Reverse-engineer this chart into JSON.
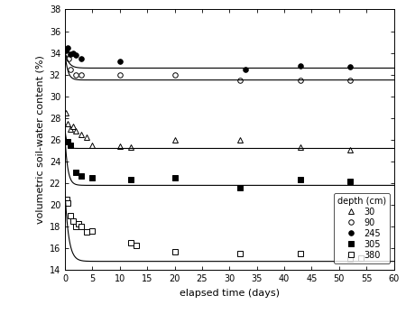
{
  "title": "",
  "xlabel": "elapsed time (days)",
  "ylabel": "volumetric soil-water content (%)",
  "xlim": [
    0,
    60
  ],
  "ylim": [
    14,
    38
  ],
  "yticks": [
    14,
    16,
    18,
    20,
    22,
    24,
    26,
    28,
    30,
    32,
    34,
    36,
    38
  ],
  "xticks": [
    0,
    5,
    10,
    15,
    20,
    25,
    30,
    35,
    40,
    45,
    50,
    55,
    60
  ],
  "depths": [
    "30",
    "90",
    "245",
    "305",
    "380"
  ],
  "legend_title": "depth (cm)",
  "series": {
    "30": {
      "x": [
        0.2,
        0.5,
        1.0,
        1.5,
        2.0,
        3.0,
        4.0,
        5.0,
        10.0,
        12.0,
        20.0,
        32.0,
        43.0,
        52.0
      ],
      "y": [
        28.5,
        27.5,
        27.0,
        27.2,
        26.8,
        26.5,
        26.2,
        25.5,
        25.4,
        25.3,
        26.0,
        26.0,
        25.3,
        25.1
      ],
      "marker": "^",
      "mfc": "white",
      "mec": "black",
      "ms": 4,
      "fit_a": 1.8,
      "fit_b": 3.0,
      "fit_c": 25.2
    },
    "90": {
      "x": [
        0.3,
        0.7,
        1.0,
        2.0,
        3.0,
        10.0,
        20.0,
        32.0,
        43.0,
        52.0
      ],
      "y": [
        34.0,
        33.5,
        32.5,
        32.0,
        32.0,
        32.0,
        32.0,
        31.5,
        31.5,
        31.5
      ],
      "marker": "o",
      "mfc": "white",
      "mec": "black",
      "ms": 4,
      "fit_a": 2.5,
      "fit_b": 2.0,
      "fit_c": 31.5
    },
    "245": {
      "x": [
        0.2,
        0.5,
        1.0,
        1.5,
        2.0,
        3.0,
        10.0,
        33.0,
        43.0,
        52.0
      ],
      "y": [
        34.2,
        34.5,
        33.9,
        34.0,
        33.8,
        33.5,
        33.2,
        32.5,
        32.8,
        32.7
      ],
      "marker": "o",
      "mfc": "black",
      "mec": "black",
      "ms": 4,
      "fit_a": 1.5,
      "fit_b": 1.5,
      "fit_c": 32.6
    },
    "305": {
      "x": [
        0.5,
        1.0,
        2.0,
        3.0,
        5.0,
        12.0,
        20.0,
        32.0,
        43.0,
        52.0
      ],
      "y": [
        25.8,
        25.5,
        23.0,
        22.7,
        22.5,
        22.3,
        22.5,
        21.6,
        22.3,
        22.2
      ],
      "marker": "s",
      "mfc": "black",
      "mec": "black",
      "ms": 4,
      "fit_a": 4.5,
      "fit_b": 2.0,
      "fit_c": 21.8
    },
    "380": {
      "x": [
        0.3,
        0.5,
        1.0,
        1.5,
        2.0,
        2.5,
        3.0,
        4.0,
        5.0,
        12.0,
        13.0,
        20.0,
        32.0,
        43.0,
        52.0,
        54.0
      ],
      "y": [
        20.5,
        20.2,
        19.0,
        18.5,
        18.0,
        18.3,
        18.0,
        17.5,
        17.6,
        16.5,
        16.3,
        15.7,
        15.5,
        15.5,
        15.0,
        15.1
      ],
      "marker": "s",
      "mfc": "white",
      "mec": "black",
      "ms": 4,
      "fit_a": 6.5,
      "fit_b": 1.5,
      "fit_c": 14.8
    }
  },
  "background_color": "#ffffff",
  "line_color": "#000000"
}
